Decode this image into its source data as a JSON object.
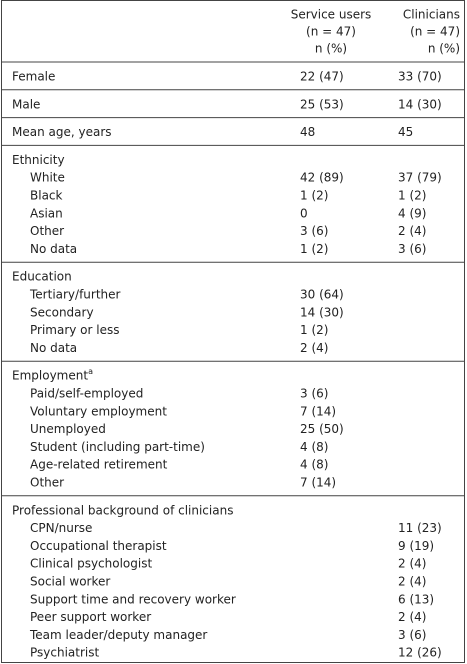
{
  "table": {
    "header": {
      "service_users": [
        "Service users",
        "(n = 47)",
        "n (%)"
      ],
      "clinicians": [
        "Clinicians",
        "(n = 47)",
        "n (%)"
      ]
    },
    "sections": [
      {
        "rows": [
          {
            "label": "Female",
            "service_users": "22 (47)",
            "clinicians": "33 (70)"
          }
        ]
      },
      {
        "rows": [
          {
            "label": "Male",
            "service_users": "25 (53)",
            "clinicians": "14 (30)"
          }
        ]
      },
      {
        "rows": [
          {
            "label": "Mean age, years",
            "service_users": 48,
            "clinicians": 45
          }
        ]
      },
      {
        "heading": "Ethnicity",
        "rows": [
          {
            "label": "White",
            "service_users": "42 (89)",
            "clinicians": "37 (79)"
          },
          {
            "label": "Black",
            "service_users": "1 (2)",
            "clinicians": "1 (2)"
          },
          {
            "label": "Asian",
            "service_users": 0,
            "clinicians": "4 (9)"
          },
          {
            "label": "Other",
            "service_users": "3 (6)",
            "clinicians": "2 (4)"
          },
          {
            "label": "No data",
            "service_users": "1 (2)",
            "clinicians": "3 (6)"
          }
        ]
      },
      {
        "heading": "Education",
        "rows": [
          {
            "label": "Tertiary/further",
            "service_users": "30 (64)"
          },
          {
            "label": "Secondary",
            "service_users": "14 (30)"
          },
          {
            "label": "Primary or less",
            "service_users": "1 (2)"
          },
          {
            "label": "No data",
            "service_users": "2 (4)"
          }
        ]
      },
      {
        "heading": "Employment",
        "heading_sup": "a",
        "rows": [
          {
            "label": "Paid/self-employed",
            "service_users": "3 (6)"
          },
          {
            "label": "Voluntary employment",
            "service_users": "7 (14)"
          },
          {
            "label": "Unemployed",
            "service_users": "25 (50)"
          },
          {
            "label": "Student (including part-time)",
            "service_users": "4 (8)"
          },
          {
            "label": "Age-related retirement",
            "service_users": "4 (8)"
          },
          {
            "label": "Other",
            "service_users": "7 (14)"
          }
        ]
      },
      {
        "heading": "Professional background of clinicians",
        "rows": [
          {
            "label": "CPN/nurse",
            "clinicians": "11 (23)"
          },
          {
            "label": "Occupational therapist",
            "clinicians": "9 (19)"
          },
          {
            "label": "Clinical psychologist",
            "clinicians": "2 (4)"
          },
          {
            "label": "Social worker",
            "clinicians": "2 (4)"
          },
          {
            "label": "Support time and recovery worker",
            "clinicians": "6 (13)"
          },
          {
            "label": "Peer support worker",
            "clinicians": "2 (4)"
          },
          {
            "label": "Team leader/deputy manager",
            "clinicians": "3 (6)"
          },
          {
            "label": "Psychiatrist",
            "clinicians": "12 (26)"
          }
        ]
      }
    ]
  }
}
